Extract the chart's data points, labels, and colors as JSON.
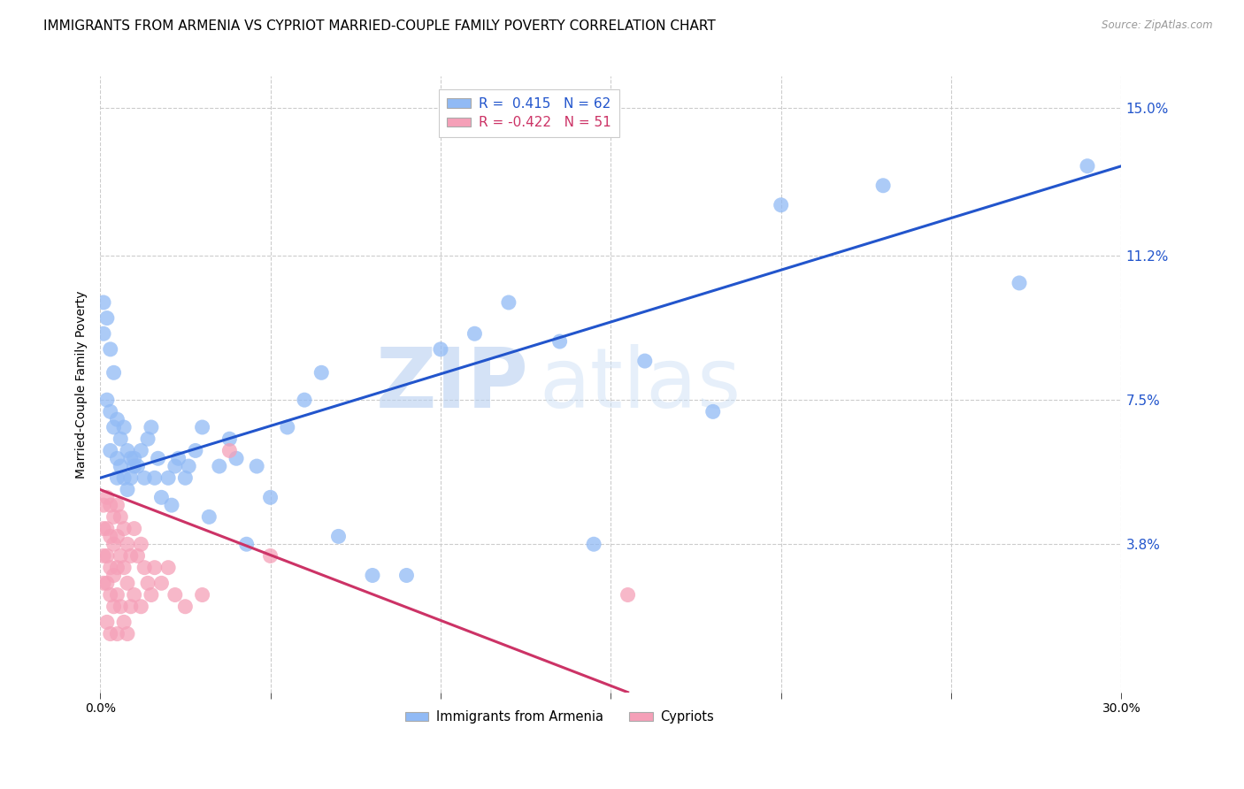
{
  "title": "IMMIGRANTS FROM ARMENIA VS CYPRIOT MARRIED-COUPLE FAMILY POVERTY CORRELATION CHART",
  "source": "Source: ZipAtlas.com",
  "ylabel": "Married-Couple Family Poverty",
  "xlim": [
    0,
    0.3
  ],
  "ylim": [
    0,
    0.158
  ],
  "xticks": [
    0.0,
    0.05,
    0.1,
    0.15,
    0.2,
    0.25,
    0.3
  ],
  "xticklabels": [
    "0.0%",
    "",
    "",
    "",
    "",
    "",
    "30.0%"
  ],
  "yticks_right": [
    0.038,
    0.075,
    0.112,
    0.15
  ],
  "yticklabels_right": [
    "3.8%",
    "7.5%",
    "11.2%",
    "15.0%"
  ],
  "legend1_label": "R =  0.415   N = 62",
  "legend2_label": "R = -0.422   N = 51",
  "legend_label1": "Immigrants from Armenia",
  "legend_label2": "Cypriots",
  "blue_color": "#91BAF5",
  "pink_color": "#F5A0B8",
  "blue_line_color": "#2255CC",
  "pink_line_color": "#CC3366",
  "watermark_zip": "ZIP",
  "watermark_atlas": "atlas",
  "blue_line_x0": 0.0,
  "blue_line_x1": 0.3,
  "blue_line_y0": 0.055,
  "blue_line_y1": 0.135,
  "pink_line_x0": 0.0,
  "pink_line_x1": 0.155,
  "pink_line_y0": 0.052,
  "pink_line_y1": 0.0,
  "blue_x": [
    0.001,
    0.001,
    0.002,
    0.002,
    0.003,
    0.003,
    0.003,
    0.004,
    0.004,
    0.005,
    0.005,
    0.005,
    0.006,
    0.006,
    0.007,
    0.007,
    0.008,
    0.008,
    0.009,
    0.009,
    0.01,
    0.01,
    0.011,
    0.012,
    0.013,
    0.014,
    0.015,
    0.016,
    0.017,
    0.018,
    0.02,
    0.021,
    0.022,
    0.023,
    0.025,
    0.026,
    0.028,
    0.03,
    0.032,
    0.035,
    0.038,
    0.04,
    0.043,
    0.046,
    0.05,
    0.055,
    0.06,
    0.065,
    0.07,
    0.08,
    0.09,
    0.1,
    0.11,
    0.12,
    0.135,
    0.145,
    0.16,
    0.18,
    0.2,
    0.23,
    0.27,
    0.29
  ],
  "blue_y": [
    0.1,
    0.092,
    0.096,
    0.075,
    0.088,
    0.072,
    0.062,
    0.082,
    0.068,
    0.07,
    0.06,
    0.055,
    0.065,
    0.058,
    0.068,
    0.055,
    0.062,
    0.052,
    0.06,
    0.055,
    0.06,
    0.058,
    0.058,
    0.062,
    0.055,
    0.065,
    0.068,
    0.055,
    0.06,
    0.05,
    0.055,
    0.048,
    0.058,
    0.06,
    0.055,
    0.058,
    0.062,
    0.068,
    0.045,
    0.058,
    0.065,
    0.06,
    0.038,
    0.058,
    0.05,
    0.068,
    0.075,
    0.082,
    0.04,
    0.03,
    0.03,
    0.088,
    0.092,
    0.1,
    0.09,
    0.038,
    0.085,
    0.072,
    0.125,
    0.13,
    0.105,
    0.135
  ],
  "pink_x": [
    0.001,
    0.001,
    0.001,
    0.001,
    0.002,
    0.002,
    0.002,
    0.002,
    0.002,
    0.003,
    0.003,
    0.003,
    0.003,
    0.003,
    0.004,
    0.004,
    0.004,
    0.004,
    0.005,
    0.005,
    0.005,
    0.005,
    0.005,
    0.006,
    0.006,
    0.006,
    0.007,
    0.007,
    0.007,
    0.008,
    0.008,
    0.008,
    0.009,
    0.009,
    0.01,
    0.01,
    0.011,
    0.012,
    0.012,
    0.013,
    0.014,
    0.015,
    0.016,
    0.018,
    0.02,
    0.022,
    0.025,
    0.03,
    0.038,
    0.05,
    0.155
  ],
  "pink_y": [
    0.048,
    0.042,
    0.035,
    0.028,
    0.05,
    0.042,
    0.035,
    0.028,
    0.018,
    0.048,
    0.04,
    0.032,
    0.025,
    0.015,
    0.045,
    0.038,
    0.03,
    0.022,
    0.048,
    0.04,
    0.032,
    0.025,
    0.015,
    0.045,
    0.035,
    0.022,
    0.042,
    0.032,
    0.018,
    0.038,
    0.028,
    0.015,
    0.035,
    0.022,
    0.042,
    0.025,
    0.035,
    0.038,
    0.022,
    0.032,
    0.028,
    0.025,
    0.032,
    0.028,
    0.032,
    0.025,
    0.022,
    0.025,
    0.062,
    0.035,
    0.025
  ]
}
